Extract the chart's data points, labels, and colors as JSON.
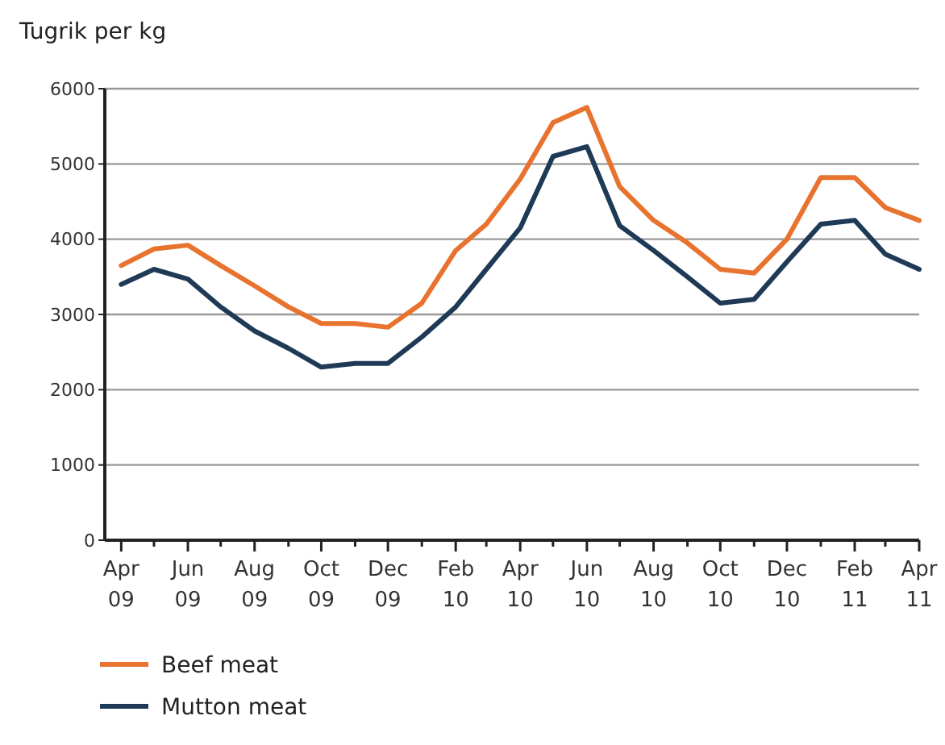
{
  "chart_data": {
    "type": "line",
    "ylabel": "Tugrik per kg",
    "x": [
      "2009-04",
      "2009-05",
      "2009-06",
      "2009-07",
      "2009-08",
      "2009-09",
      "2009-10",
      "2009-11",
      "2009-12",
      "2010-01",
      "2010-02",
      "2010-03",
      "2010-04",
      "2010-05",
      "2010-06",
      "2010-07",
      "2010-08",
      "2010-09",
      "2010-10",
      "2010-11",
      "2010-12",
      "2011-01",
      "2011-02",
      "2011-03",
      "2011-04"
    ],
    "series": [
      {
        "name": "Beef meat",
        "color": "#e8732e",
        "values": [
          3650,
          3870,
          3920,
          3650,
          3380,
          3100,
          2880,
          2880,
          2830,
          3150,
          3850,
          4200,
          4800,
          5550,
          5750,
          4700,
          4250,
          3950,
          3600,
          3550,
          4000,
          4820,
          4820,
          4420,
          4250
        ]
      },
      {
        "name": "Mutton meat",
        "color": "#1f3a56",
        "values": [
          3400,
          3600,
          3470,
          3100,
          2780,
          2550,
          2300,
          2350,
          2350,
          2700,
          3100,
          3600,
          4150,
          5100,
          5230,
          4180,
          3850,
          3500,
          3150,
          3200,
          3700,
          4200,
          4250,
          3800,
          3600
        ]
      }
    ],
    "xlim": [
      "2009-03-17",
      "2011-04"
    ],
    "xticks": [
      {
        "value": "2009-04",
        "label": "Apr 09"
      },
      {
        "value": "2009-05",
        "label": null
      },
      {
        "value": "2009-06",
        "label": "Jun 09"
      },
      {
        "value": "2009-07",
        "label": null
      },
      {
        "value": "2009-08",
        "label": "Aug 09"
      },
      {
        "value": "2009-09",
        "label": null
      },
      {
        "value": "2009-10",
        "label": "Oct 09"
      },
      {
        "value": "2009-11",
        "label": null
      },
      {
        "value": "2009-12",
        "label": "Dec 09"
      },
      {
        "value": "2010-01",
        "label": null
      },
      {
        "value": "2010-02",
        "label": "Feb 10"
      },
      {
        "value": "2010-03",
        "label": null
      },
      {
        "value": "2010-04",
        "label": "Apr 10"
      },
      {
        "value": "2010-05",
        "label": null
      },
      {
        "value": "2010-06",
        "label": "Jun 10"
      },
      {
        "value": "2010-07",
        "label": null
      },
      {
        "value": "2010-08",
        "label": "Aug 10"
      },
      {
        "value": "2010-09",
        "label": null
      },
      {
        "value": "2010-10",
        "label": "Oct 10"
      },
      {
        "value": "2010-11",
        "label": null
      },
      {
        "value": "2010-12",
        "label": "Dec 10"
      },
      {
        "value": "2011-01",
        "label": null
      },
      {
        "value": "2011-02",
        "label": "Feb 11"
      },
      {
        "value": "2011-03",
        "label": null
      },
      {
        "value": "2011-04",
        "label": "Apr 11"
      }
    ],
    "ylim": [
      0,
      6000
    ],
    "yticks": [
      0,
      1000,
      2000,
      3000,
      4000,
      5000,
      6000
    ],
    "grid": "y",
    "legend": "bottom left",
    "marker": "none",
    "line_style": "solid"
  }
}
